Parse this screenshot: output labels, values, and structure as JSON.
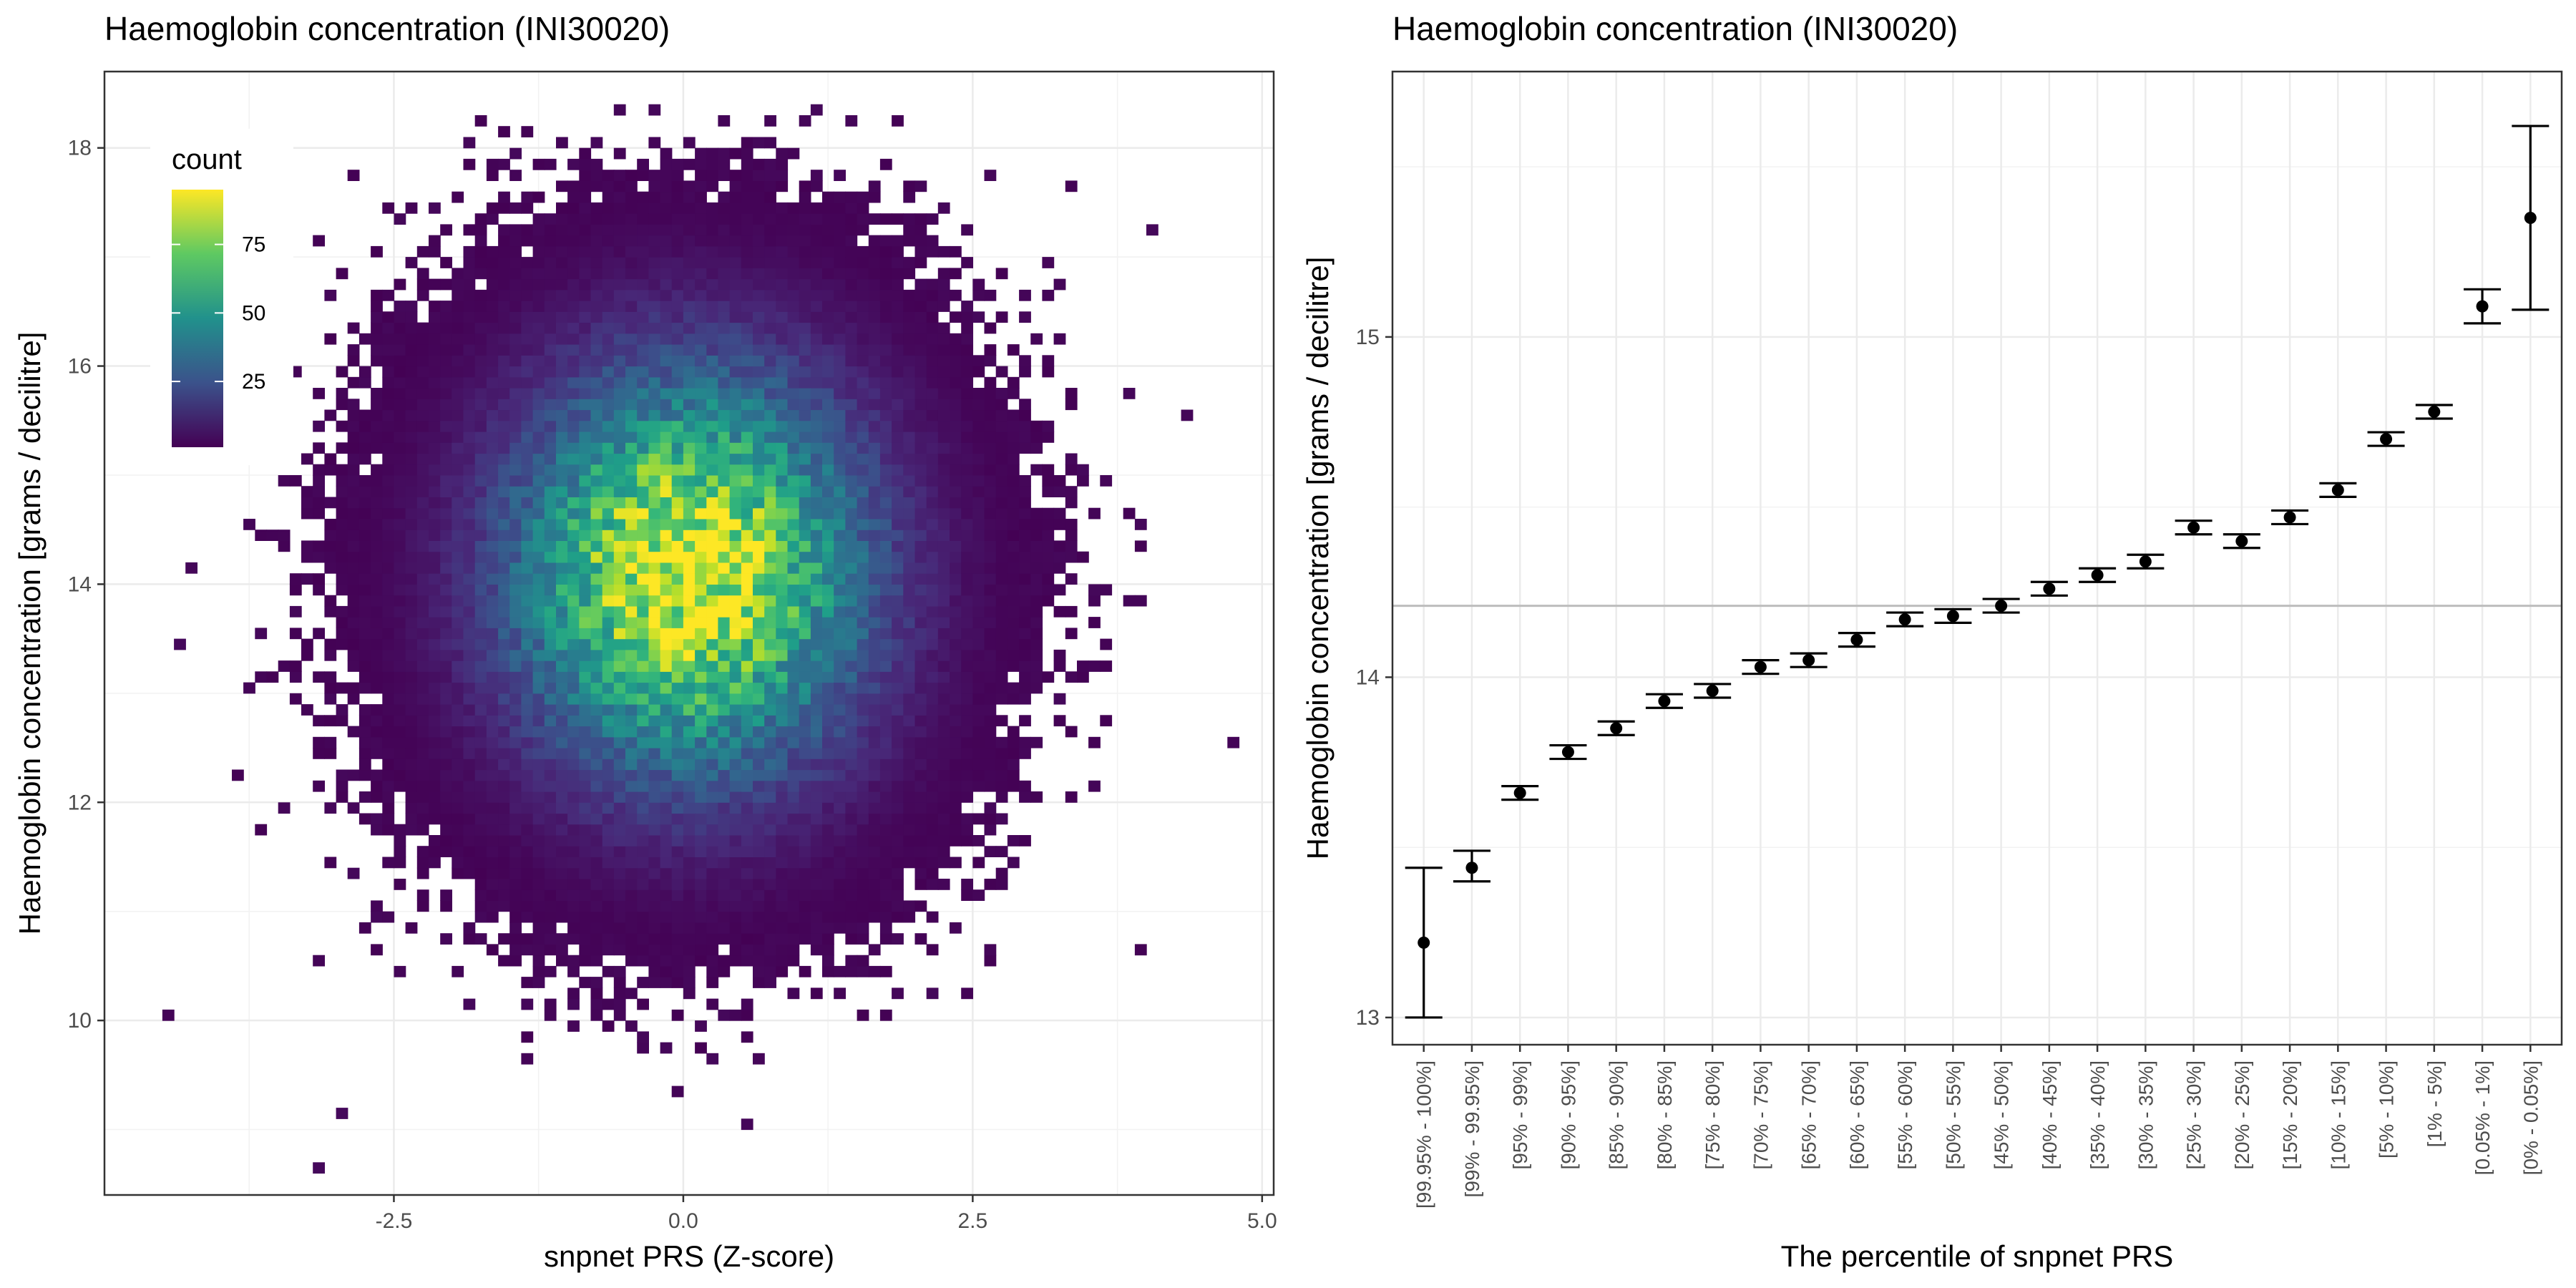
{
  "chart_data": [
    {
      "type": "heatmap",
      "title": "Haemoglobin concentration (INI30020)",
      "xlabel": "snpnet PRS (Z-score)",
      "ylabel": "Haemoglobin concentration [grams / decilitre]",
      "xlim": [
        -5.0,
        5.1
      ],
      "ylim": [
        8.4,
        18.7
      ],
      "x_ticks": [
        -2.5,
        0.0,
        2.5,
        5.0
      ],
      "x_tick_labels": [
        "-2.5",
        "0.0",
        "2.5",
        "5.0"
      ],
      "y_ticks": [
        10,
        12,
        14,
        16,
        18
      ],
      "y_tick_labels": [
        "10",
        "12",
        "14",
        "16",
        "18"
      ],
      "legend": {
        "title": "count",
        "placement": "top-left inside",
        "ticks": [
          25,
          50,
          75
        ],
        "tick_labels": [
          "25",
          "50",
          "75"
        ],
        "range": [
          1,
          95
        ],
        "colormap": "viridis"
      },
      "distribution": {
        "center_x": 0.0,
        "center_y": 14.05,
        "sd_x": 1.0,
        "sd_y": 1.2,
        "max_count": 95,
        "bin_width_x": 0.1,
        "bin_height_y": 0.1
      },
      "grid": true
    },
    {
      "type": "errorbar",
      "title": "Haemoglobin concentration (INI30020)",
      "xlabel": "The percentile of snpnet PRS",
      "ylabel": "Haemoglobin concentration [grams / decilitre]",
      "ylim": [
        12.92,
        15.78
      ],
      "y_ticks": [
        13,
        14,
        15
      ],
      "y_tick_labels": [
        "13",
        "14",
        "15"
      ],
      "reference_line": 14.21,
      "categories": [
        "[99.95% - 100%]",
        "[99% - 99.95%]",
        "[95% - 99%]",
        "[90% - 95%]",
        "[85% - 90%]",
        "[80% - 85%]",
        "[75% - 80%]",
        "[70% - 75%]",
        "[65% - 70%]",
        "[60% - 65%]",
        "[55% - 60%]",
        "[50% - 55%]",
        "[45% - 50%]",
        "[40% - 45%]",
        "[35% - 40%]",
        "[30% - 35%]",
        "[25% - 30%]",
        "[20% - 25%]",
        "[15% - 20%]",
        "[10% - 15%]",
        "[5% - 10%]",
        "[1% - 5%]",
        "[0.05% - 1%]",
        "[0% - 0.05%]"
      ],
      "values": [
        13.22,
        13.44,
        13.66,
        13.78,
        13.85,
        13.93,
        13.96,
        14.03,
        14.05,
        14.11,
        14.17,
        14.18,
        14.21,
        14.26,
        14.3,
        14.34,
        14.44,
        14.4,
        14.47,
        14.55,
        14.7,
        14.78,
        15.09,
        15.35
      ],
      "lower": [
        13.0,
        13.4,
        13.64,
        13.76,
        13.83,
        13.91,
        13.94,
        14.01,
        14.03,
        14.09,
        14.15,
        14.16,
        14.19,
        14.24,
        14.28,
        14.32,
        14.42,
        14.38,
        14.45,
        14.53,
        14.68,
        14.76,
        15.04,
        15.08
      ],
      "upper": [
        13.44,
        13.49,
        13.68,
        13.8,
        13.87,
        13.95,
        13.98,
        14.05,
        14.07,
        14.13,
        14.19,
        14.2,
        14.23,
        14.28,
        14.32,
        14.36,
        14.46,
        14.42,
        14.49,
        14.57,
        14.72,
        14.8,
        15.14,
        15.62
      ],
      "grid": true
    }
  ]
}
